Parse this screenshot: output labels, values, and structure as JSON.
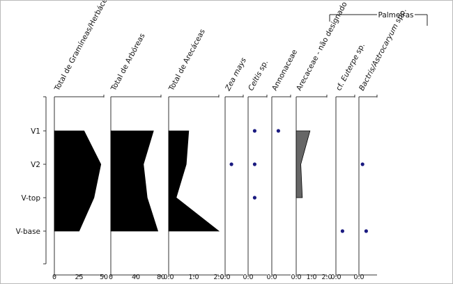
{
  "chart_data": {
    "type": "area",
    "group_label": "Palmeiras",
    "samples": [
      "V1",
      "V2",
      "V-top",
      "V-base"
    ],
    "panels": [
      {
        "name": "Total de Gramíneas/Herbáceas",
        "italic": [],
        "style": "silhouette",
        "xlim": [
          0,
          50
        ],
        "ticks": [
          "0",
          "25",
          "50"
        ],
        "values": [
          30,
          47,
          40,
          25
        ]
      },
      {
        "name": "Total de Arbóreas",
        "italic": [],
        "style": "silhouette",
        "xlim": [
          0,
          80
        ],
        "ticks": [
          "0",
          "40",
          "80"
        ],
        "values": [
          68,
          52,
          58,
          75
        ]
      },
      {
        "name": "Total de Arecáceas",
        "italic": [],
        "style": "silhouette",
        "xlim": [
          0,
          2
        ],
        "ticks": [
          "0.0",
          "1.0",
          "2.0"
        ],
        "values": [
          0.8,
          0.7,
          0.3,
          2.0
        ]
      },
      {
        "name": "Zea mays",
        "italic": [
          "Zea mays"
        ],
        "style": "dots",
        "xlim": [
          0,
          1
        ],
        "ticks": [
          "0.0"
        ],
        "values": [
          null,
          0.35,
          null,
          null
        ]
      },
      {
        "name": "Celtis sp.",
        "italic": [
          "Celtis"
        ],
        "style": "dots",
        "xlim": [
          0,
          1
        ],
        "ticks": [
          "0.0"
        ],
        "values": [
          0.35,
          0.35,
          0.35,
          null
        ]
      },
      {
        "name": "Annonaceae",
        "italic": [],
        "style": "dots",
        "xlim": [
          0,
          1
        ],
        "ticks": [
          "0.0"
        ],
        "values": [
          0.35,
          null,
          null,
          null
        ]
      },
      {
        "name": "Arecaceae - não designado",
        "italic": [],
        "style": "bar-area",
        "xlim": [
          0,
          2
        ],
        "ticks": [
          "0.0",
          "1.0",
          "2.0"
        ],
        "values": [
          0.9,
          0.3,
          0.4,
          null
        ]
      },
      {
        "name": "cf. Euterpe sp.",
        "italic": [
          "Euterpe"
        ],
        "style": "dots",
        "xlim": [
          0,
          1
        ],
        "ticks": [
          "0.0"
        ],
        "values": [
          null,
          null,
          null,
          0.35
        ]
      },
      {
        "name": "Bactris/Astrocaryum spp.",
        "italic": [
          "Bactris/Astrocaryum"
        ],
        "style": "dots",
        "xlim": [
          0,
          1
        ],
        "ticks": [
          "0.0"
        ],
        "values": [
          null,
          0.2,
          null,
          0.4
        ]
      }
    ],
    "colors": {
      "silhouette": "#000000",
      "bar_area": "#666666",
      "dots": "#1a1a80",
      "axis": "#333333"
    },
    "grid": false
  }
}
